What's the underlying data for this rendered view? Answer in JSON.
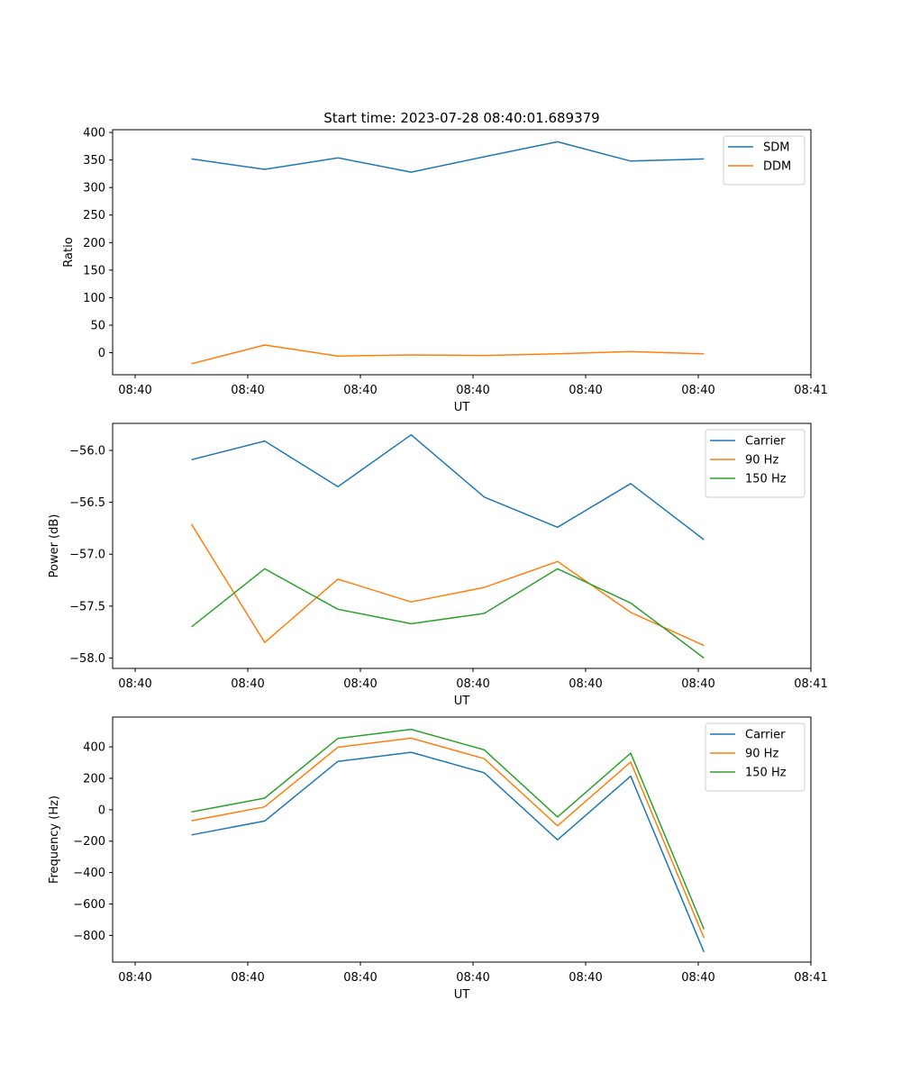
{
  "figure": {
    "title": "Start time: 2023-07-28 08:40:01.689379"
  },
  "chart_data": [
    {
      "type": "line",
      "title": "Start time: 2023-07-28 08:40:01.689379",
      "xlabel": "UT",
      "ylabel": "Ratio",
      "x_tick_labels": [
        "08:40",
        "08:40",
        "08:40",
        "08:40",
        "08:40",
        "08:40",
        "08:41"
      ],
      "x_tick_values": [
        0,
        1,
        2,
        3,
        4,
        5,
        6
      ],
      "xlim": [
        -0.2,
        6.0
      ],
      "x": [
        0.5,
        1.15,
        1.8,
        2.45,
        3.1,
        3.75,
        4.4,
        5.05
      ],
      "ylim": [
        -40,
        405
      ],
      "y_ticks": [
        0,
        50,
        100,
        150,
        200,
        250,
        300,
        350,
        400
      ],
      "legend_position": "top-right",
      "series": [
        {
          "name": "SDM",
          "color": "#1f77b4",
          "values": [
            352,
            333,
            354,
            328,
            356,
            383,
            348,
            352
          ]
        },
        {
          "name": "DDM",
          "color": "#ff7f0e",
          "values": [
            -20,
            14,
            -6,
            -4,
            -5,
            -2,
            2,
            -2
          ]
        }
      ]
    },
    {
      "type": "line",
      "title": "",
      "xlabel": "UT",
      "ylabel": "Power (dB)",
      "x_tick_labels": [
        "08:40",
        "08:40",
        "08:40",
        "08:40",
        "08:40",
        "08:40",
        "08:41"
      ],
      "x_tick_values": [
        0,
        1,
        2,
        3,
        4,
        5,
        6
      ],
      "xlim": [
        -0.2,
        6.0
      ],
      "x": [
        0.5,
        1.15,
        1.8,
        2.45,
        3.1,
        3.75,
        4.4,
        5.05
      ],
      "ylim": [
        -58.1,
        -55.74
      ],
      "y_ticks": [
        -58.0,
        -57.5,
        -57.0,
        -56.5,
        -56.0
      ],
      "y_tick_labels": [
        "−58.0",
        "−57.5",
        "−57.0",
        "−56.5",
        "−56.0"
      ],
      "legend_position": "top-right",
      "series": [
        {
          "name": "Carrier",
          "color": "#1f77b4",
          "values": [
            -56.09,
            -55.91,
            -56.35,
            -55.85,
            -56.45,
            -56.74,
            -56.32,
            -56.86
          ]
        },
        {
          "name": "90 Hz",
          "color": "#ff7f0e",
          "values": [
            -56.71,
            -57.85,
            -57.24,
            -57.46,
            -57.32,
            -57.07,
            -57.56,
            -57.88
          ]
        },
        {
          "name": "150 Hz",
          "color": "#2ca02c",
          "values": [
            -57.7,
            -57.14,
            -57.53,
            -57.67,
            -57.57,
            -57.14,
            -57.47,
            -58.0
          ]
        }
      ]
    },
    {
      "type": "line",
      "title": "",
      "xlabel": "UT",
      "ylabel": "Frequency (Hz)",
      "x_tick_labels": [
        "08:40",
        "08:40",
        "08:40",
        "08:40",
        "08:40",
        "08:40",
        "08:41"
      ],
      "x_tick_values": [
        0,
        1,
        2,
        3,
        4,
        5,
        6
      ],
      "xlim": [
        -0.2,
        6.0
      ],
      "x": [
        0.5,
        1.15,
        1.8,
        2.45,
        3.1,
        3.75,
        4.4,
        5.05
      ],
      "ylim": [
        -970,
        590
      ],
      "y_ticks": [
        -800,
        -600,
        -400,
        -200,
        0,
        200,
        400
      ],
      "y_tick_labels": [
        "−800",
        "−600",
        "−400",
        "−200",
        "0",
        "200",
        "400"
      ],
      "legend_position": "top-right",
      "series": [
        {
          "name": "Carrier",
          "color": "#1f77b4",
          "values": [
            -160,
            -72,
            308,
            366,
            235,
            -192,
            214,
            -906
          ]
        },
        {
          "name": "90 Hz",
          "color": "#ff7f0e",
          "values": [
            -70,
            18,
            398,
            456,
            325,
            -102,
            304,
            -816
          ]
        },
        {
          "name": "150 Hz",
          "color": "#2ca02c",
          "values": [
            -14,
            74,
            454,
            512,
            381,
            -46,
            360,
            -760
          ]
        }
      ]
    }
  ]
}
